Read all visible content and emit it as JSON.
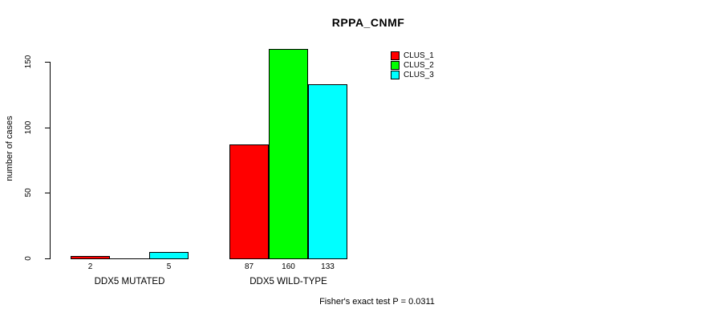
{
  "chart_data": {
    "type": "bar",
    "title": "RPPA_CNMF",
    "ylabel": "number of cases",
    "xlabel": "",
    "ylim": [
      0,
      160
    ],
    "yticks": [
      0,
      50,
      100,
      150
    ],
    "categories": [
      "DDX5 MUTATED",
      "DDX5 WILD-TYPE"
    ],
    "series": [
      {
        "name": "CLUS_1",
        "color": "#ff0000",
        "values": [
          2,
          87
        ]
      },
      {
        "name": "CLUS_2",
        "color": "#00ff00",
        "values": [
          0,
          160
        ]
      },
      {
        "name": "CLUS_3",
        "color": "#00ffff",
        "values": [
          5,
          133
        ]
      }
    ],
    "bar_value_labels": [
      [
        "2",
        "",
        "5"
      ],
      [
        "87",
        "160",
        "133"
      ]
    ],
    "legend_position": "top-right",
    "grid": false,
    "annotation": "Fisher's exact test P = 0.0311"
  },
  "colors": {
    "background": "#ffffff",
    "axis": "#000000",
    "bar_border": "#000000",
    "text": "#000000"
  }
}
